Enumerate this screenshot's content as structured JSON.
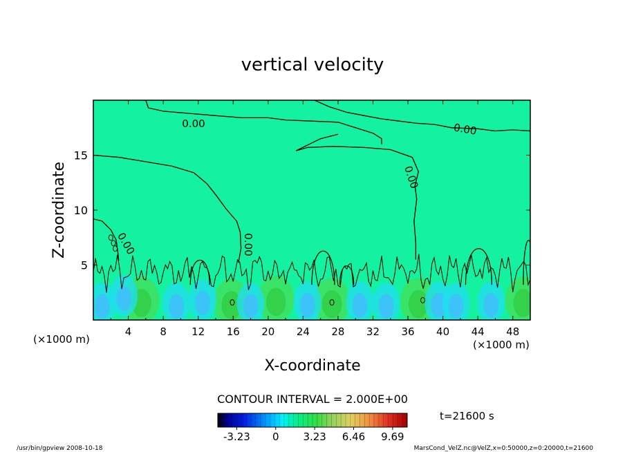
{
  "chart_data": {
    "type": "heatmap",
    "title": "vertical velocity",
    "xlabel": "X-coordinate",
    "ylabel": "Z-coordinate",
    "x_unit": "(×1000 m)",
    "x_unit_left": "(×1000 m)",
    "xlim": [
      0,
      50
    ],
    "ylim": [
      0,
      20
    ],
    "x_ticks": [
      4,
      8,
      12,
      16,
      20,
      24,
      28,
      32,
      36,
      40,
      44,
      48
    ],
    "y_ticks": [
      5,
      10,
      15
    ],
    "contour_label": "0.00",
    "contour_interval_text": "CONTOUR INTERVAL = 2.000E+00",
    "time_text": "t=21600 s",
    "colorbar": {
      "ticks": [
        -3.23,
        0,
        3.23,
        6.46,
        9.69
      ],
      "tick_labels": [
        "-3.23",
        "0",
        "3.23",
        "6.46",
        "9.69"
      ],
      "min": -4.8,
      "max": 10.9
    },
    "colors": {
      "background_field": "#14f2a0",
      "zero_line": "#000000"
    },
    "footer_left": "/usr/bin/gpview   2008-10-18",
    "footer_right": "MarsCond_VelZ.nc@VelZ,x=0:50000,z=0:20000,t=21600",
    "features": [
      {
        "kind": "updraft",
        "x": 5.5,
        "z": 1.8,
        "w": 2.5
      },
      {
        "kind": "updraft",
        "x": 15.8,
        "z": 1.6,
        "w": 2.3
      },
      {
        "kind": "updraft",
        "x": 20.9,
        "z": 1.9,
        "w": 2.1
      },
      {
        "kind": "updraft",
        "x": 27.3,
        "z": 1.7,
        "w": 2.2
      },
      {
        "kind": "updraft",
        "x": 37.2,
        "z": 1.7,
        "w": 2.4
      },
      {
        "kind": "updraft",
        "x": 49.2,
        "z": 1.8,
        "w": 2.3
      },
      {
        "kind": "downdraft",
        "x": 1.0,
        "z": 1.5,
        "w": -1.6
      },
      {
        "kind": "downdraft",
        "x": 3.5,
        "z": 2.2,
        "w": -1.2
      },
      {
        "kind": "downdraft",
        "x": 9.5,
        "z": 1.5,
        "w": -1.5
      },
      {
        "kind": "downdraft",
        "x": 12.5,
        "z": 1.8,
        "w": -1.3
      },
      {
        "kind": "downdraft",
        "x": 18.0,
        "z": 1.5,
        "w": -1.2
      },
      {
        "kind": "downdraft",
        "x": 24.5,
        "z": 1.6,
        "w": -1.6
      },
      {
        "kind": "downdraft",
        "x": 30.5,
        "z": 1.6,
        "w": -1.3
      },
      {
        "kind": "downdraft",
        "x": 33.5,
        "z": 1.5,
        "w": -1.2
      },
      {
        "kind": "downdraft",
        "x": 39.5,
        "z": 1.6,
        "w": -1.3
      },
      {
        "kind": "downdraft",
        "x": 41.5,
        "z": 1.5,
        "w": -1.6
      },
      {
        "kind": "downdraft",
        "x": 45.5,
        "z": 1.6,
        "w": -1.5
      }
    ]
  }
}
